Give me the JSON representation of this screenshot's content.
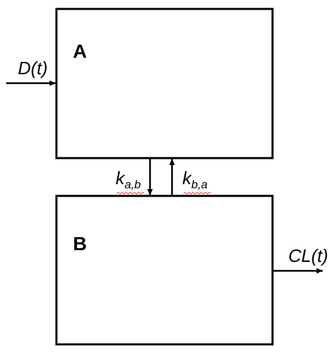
{
  "compartments": {
    "a": {
      "label": "A"
    },
    "b": {
      "label": "B"
    }
  },
  "inputs": {
    "dose": {
      "label": "D(t)"
    }
  },
  "outputs": {
    "clearance": {
      "label": "CL(t)"
    }
  },
  "rates": {
    "k_ab": {
      "symbol": "k",
      "subscript": "a,b"
    },
    "k_ba": {
      "symbol": "k",
      "subscript": "b,a"
    }
  },
  "colors": {
    "stroke": "#000000",
    "spellcheck_underline": "#e03030"
  }
}
